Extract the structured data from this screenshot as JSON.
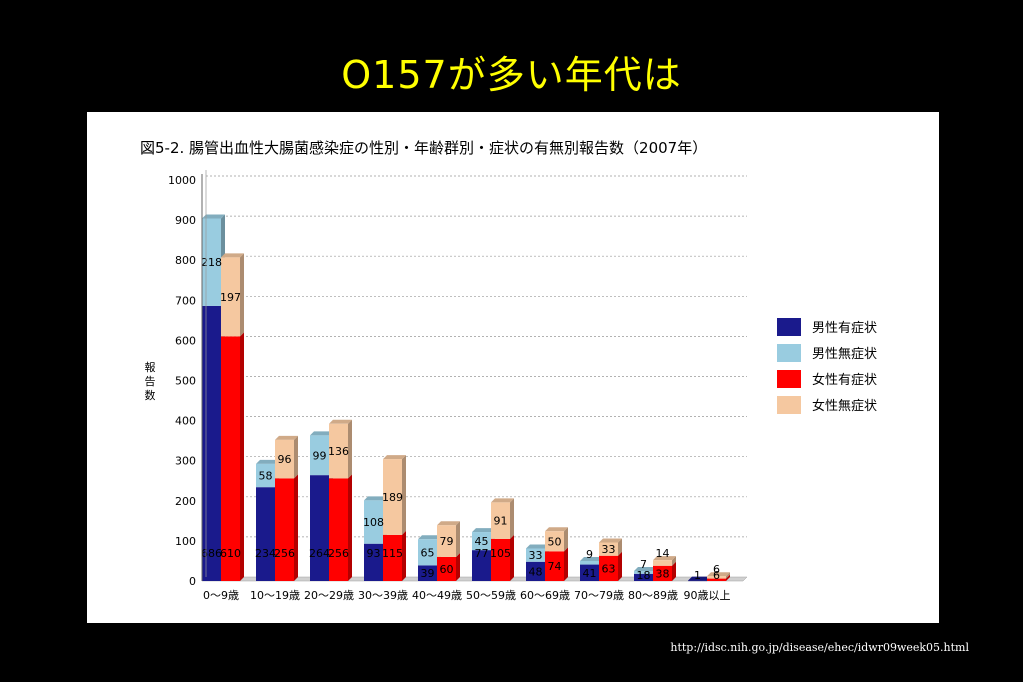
{
  "slide": {
    "title": "O157が多い年代は",
    "source": "http://idsc.nih.go.jp/disease/ehec/idwr09week05.html"
  },
  "chart_data": {
    "type": "bar",
    "title": "図5-2. 腸管出血性大腸菌感染症の性別・年齢群別・症状の有無別報告数（2007年）",
    "ylabel": "報告数",
    "xlabel": "",
    "ylim": [
      0,
      1000
    ],
    "yticks": [
      0,
      100,
      200,
      300,
      400,
      500,
      600,
      700,
      800,
      900,
      1000
    ],
    "grid": true,
    "legend_position": "right",
    "categories": [
      "0〜9歳",
      "10〜19歳",
      "20〜29歳",
      "30〜39歳",
      "40〜49歳",
      "50〜59歳",
      "60〜69歳",
      "70〜79歳",
      "80〜89歳",
      "90歳以上"
    ],
    "groups": [
      {
        "name": "男性",
        "stack": [
          {
            "series": "男性有症状",
            "values": [
              686,
              234,
              264,
              93,
              39,
              77,
              48,
              41,
              18,
              1
            ]
          },
          {
            "series": "男性無症状",
            "values": [
              218,
              58,
              99,
              108,
              65,
              45,
              33,
              9,
              7,
              0
            ]
          }
        ]
      },
      {
        "name": "女性",
        "stack": [
          {
            "series": "女性有症状",
            "values": [
              610,
              256,
              256,
              115,
              60,
              105,
              74,
              63,
              38,
              6
            ]
          },
          {
            "series": "女性無症状",
            "values": [
              197,
              96,
              136,
              189,
              79,
              91,
              50,
              33,
              14,
              6
            ]
          }
        ]
      }
    ],
    "legend": [
      {
        "name": "男性有症状",
        "color": "#1a1a8c"
      },
      {
        "name": "男性無症状",
        "color": "#99cce0"
      },
      {
        "name": "女性有症状",
        "color": "#ff0000"
      },
      {
        "name": "女性無症状",
        "color": "#f5c8a0"
      }
    ]
  }
}
